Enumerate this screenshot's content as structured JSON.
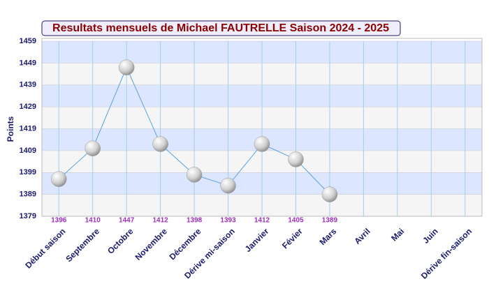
{
  "chart_data": {
    "type": "line",
    "title": "Resultats mensuels de Michael FAUTRELLE Saison 2024 - 2025",
    "y_label": "Points",
    "categories": [
      "Début saison",
      "Septembre",
      "Octobre",
      "Novembre",
      "Décembre",
      "Dérive mi-saison",
      "Janvier",
      "Févier",
      "Mars",
      "Avril",
      "Mai",
      "Juin",
      "Dérive fin-saison"
    ],
    "series": [
      {
        "color": "#5aa0e0",
        "values": [
          1396,
          1410,
          1447,
          1412,
          1398,
          1393,
          1412,
          1405,
          1389,
          null,
          null,
          null,
          null
        ]
      }
    ],
    "ylim": [
      1379,
      1459
    ],
    "yticks": [
      1379,
      1389,
      1399,
      1409,
      1419,
      1429,
      1439,
      1449,
      1459
    ],
    "grid": true
  }
}
